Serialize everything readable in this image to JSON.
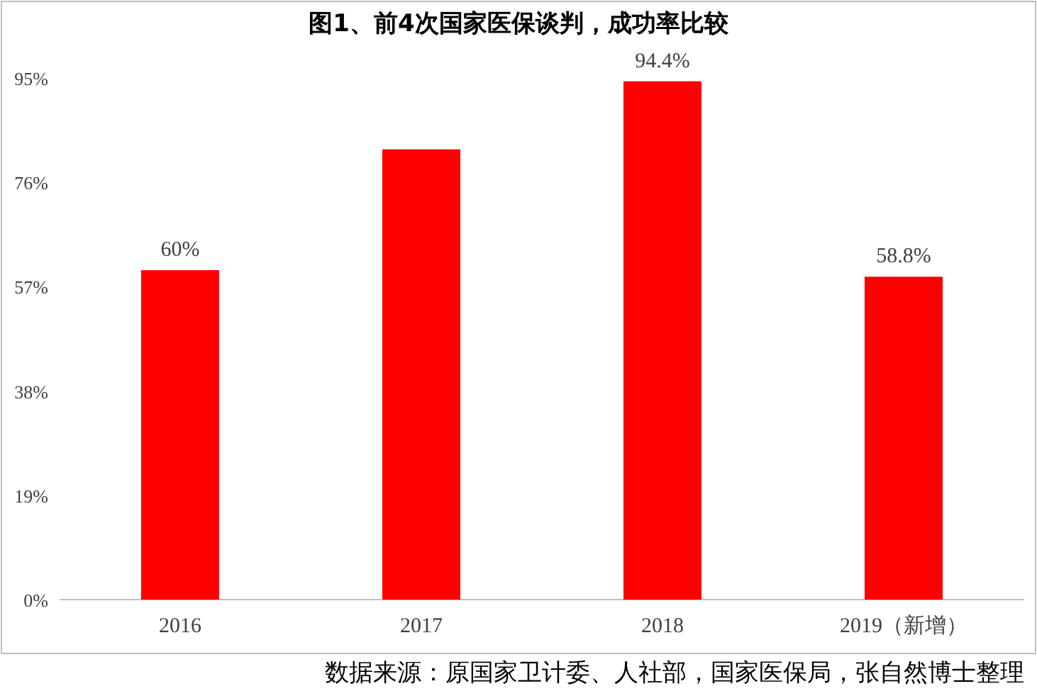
{
  "chart_data": {
    "type": "bar",
    "title": "图1、前4次国家医保谈判，成功率比较",
    "categories": [
      "2016",
      "2017",
      "2018",
      "2019（新增）"
    ],
    "values": [
      60,
      82,
      94.4,
      58.8
    ],
    "value_labels": [
      "60%",
      null,
      "94.4%",
      "58.8%"
    ],
    "color": "#ff0000",
    "ylim": [
      0,
      95
    ],
    "yticks": [
      {
        "value": 0,
        "label": "0%"
      },
      {
        "value": 19,
        "label": "19%"
      },
      {
        "value": 38,
        "label": "38%"
      },
      {
        "value": 57,
        "label": "57%"
      },
      {
        "value": 76,
        "label": "76%"
      },
      {
        "value": 95,
        "label": "95%"
      }
    ],
    "grid": false,
    "annotations": [
      "数据来源：原国家卫计委、人社部，国家医保局，张自然博士整理"
    ]
  }
}
